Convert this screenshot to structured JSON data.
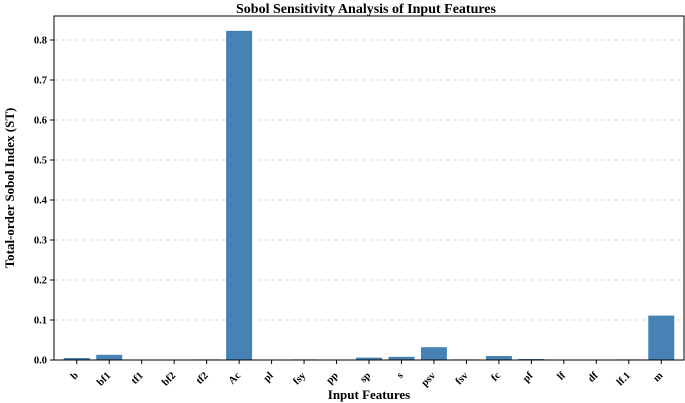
{
  "chart_data": {
    "type": "bar",
    "title": "Sobol Sensitivity Analysis of Input Features",
    "xlabel": "Input Features",
    "ylabel": "Total-order Sobol Index (ST)",
    "categories": [
      "b",
      "bf1",
      "tf1",
      "bf2",
      "tf2",
      "Ac",
      "pl",
      "fsy",
      "pp",
      "sp",
      "s",
      "psv",
      "fsv",
      "fc",
      "pf",
      "lf",
      "df",
      "lf.1",
      "m"
    ],
    "values": [
      0.005,
      0.013,
      0.0005,
      0.0005,
      0.0015,
      0.823,
      0.001,
      0.0015,
      0.0005,
      0.006,
      0.008,
      0.032,
      0.0015,
      0.01,
      0.0025,
      0.0005,
      0.0005,
      0.0015,
      0.111
    ],
    "ylim": [
      0,
      0.86
    ],
    "yticks": [
      0.0,
      0.1,
      0.2,
      0.3,
      0.4,
      0.5,
      0.6,
      0.7,
      0.8
    ],
    "ytick_labels": [
      "0.0",
      "0.1",
      "0.2",
      "0.3",
      "0.4",
      "0.5",
      "0.6",
      "0.7",
      "0.8"
    ],
    "grid": true,
    "bar_color": "#4682b4"
  }
}
